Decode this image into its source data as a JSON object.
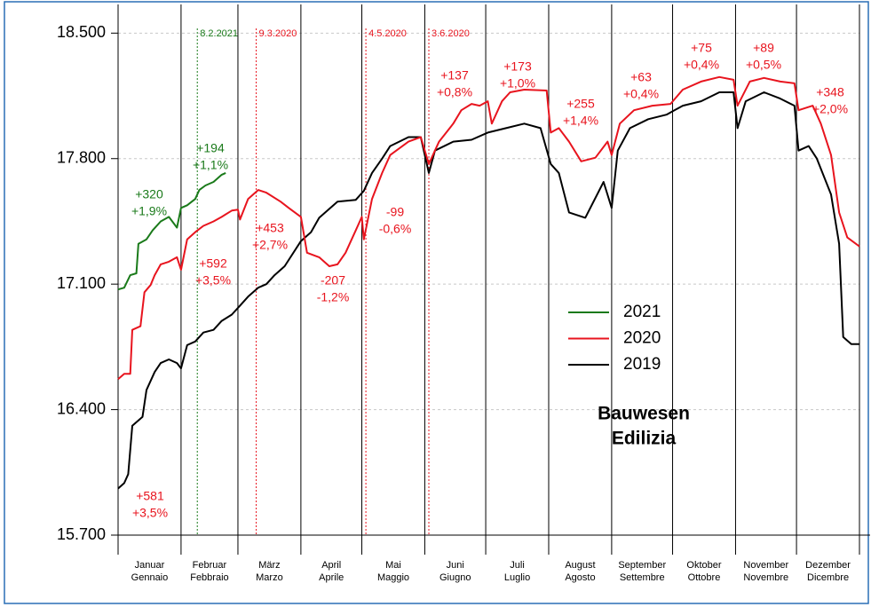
{
  "chart_data": {
    "type": "line",
    "xlim": [
      0,
      365
    ],
    "ylim": [
      15700,
      18660
    ],
    "yticks": [
      {
        "value": 15700,
        "label": "15.700"
      },
      {
        "value": 16400,
        "label": "16.400"
      },
      {
        "value": 17100,
        "label": "17.100"
      },
      {
        "value": 17800,
        "label": "17.800"
      },
      {
        "value": 18500,
        "label": "18.500"
      }
    ],
    "xticks": [
      0,
      31,
      59,
      90,
      120,
      151,
      181,
      212,
      243,
      273,
      304,
      334,
      365
    ],
    "months": [
      [
        "Januar",
        "Gennaio"
      ],
      [
        "Februar",
        "Febbraio"
      ],
      [
        "März",
        "Marzo"
      ],
      [
        "April",
        "Aprile"
      ],
      [
        "Mai",
        "Maggio"
      ],
      [
        "Juni",
        "Giugno"
      ],
      [
        "Juli",
        "Luglio"
      ],
      [
        "August",
        "Agosto"
      ],
      [
        "September",
        "Settembre"
      ],
      [
        "Oktober",
        "Ottobre"
      ],
      [
        "November",
        "Novembre"
      ],
      [
        "Dezember",
        "Dicembre"
      ]
    ],
    "grid": true,
    "series": [
      {
        "name": "2021",
        "color": "#1a7a1a",
        "x": [
          0,
          3,
          6,
          9,
          10,
          14,
          17,
          21,
          25,
          29,
          31,
          34,
          38,
          40,
          43,
          47,
          51,
          53
        ],
        "values": [
          17070,
          17080,
          17150,
          17160,
          17325,
          17350,
          17400,
          17450,
          17475,
          17415,
          17525,
          17540,
          17575,
          17625,
          17650,
          17670,
          17710,
          17720
        ]
      },
      {
        "name": "2020",
        "color": "#e8141e",
        "x": [
          0,
          3,
          6,
          7,
          11,
          13,
          16,
          18,
          21,
          25,
          29,
          31,
          34,
          38,
          42,
          47,
          51,
          56,
          59,
          60,
          64,
          69,
          73,
          80,
          84,
          90,
          93,
          99,
          104,
          108,
          112,
          117,
          120,
          121,
          125,
          130,
          134,
          143,
          149,
          153,
          158,
          165,
          169,
          174,
          178,
          182,
          184,
          189,
          193,
          200,
          211,
          213,
          217,
          222,
          228,
          235,
          241,
          243,
          247,
          254,
          263,
          272,
          278,
          287,
          296,
          303,
          305,
          311,
          318,
          326,
          333,
          335,
          342,
          346,
          351,
          355,
          359,
          365
        ],
        "values": [
          16570,
          16600,
          16600,
          16845,
          16865,
          17055,
          17095,
          17150,
          17210,
          17225,
          17250,
          17180,
          17350,
          17390,
          17425,
          17450,
          17475,
          17510,
          17515,
          17460,
          17575,
          17625,
          17610,
          17560,
          17525,
          17475,
          17275,
          17250,
          17200,
          17210,
          17275,
          17400,
          17475,
          17350,
          17575,
          17720,
          17820,
          17895,
          17920,
          17770,
          17895,
          17995,
          18070,
          18105,
          18095,
          18120,
          17995,
          18120,
          18170,
          18185,
          18180,
          17945,
          17970,
          17895,
          17785,
          17805,
          17895,
          17820,
          17995,
          18070,
          18095,
          18105,
          18185,
          18230,
          18255,
          18240,
          18095,
          18230,
          18250,
          18230,
          18220,
          18070,
          18095,
          17995,
          17820,
          17500,
          17360,
          17310
        ]
      },
      {
        "name": "2019",
        "color": "#000000",
        "x": [
          0,
          3,
          5,
          7,
          12,
          14,
          18,
          21,
          25,
          29,
          31,
          34,
          38,
          42,
          47,
          51,
          56,
          60,
          64,
          69,
          73,
          77,
          82,
          90,
          95,
          99,
          108,
          117,
          121,
          125,
          130,
          134,
          143,
          149,
          153,
          156,
          165,
          174,
          182,
          191,
          200,
          208,
          213,
          217,
          222,
          230,
          239,
          243,
          246,
          252,
          261,
          270,
          278,
          287,
          296,
          303,
          305,
          309,
          318,
          326,
          333,
          335,
          340,
          344,
          351,
          355,
          357,
          361,
          365
        ],
        "values": [
          15960,
          15990,
          16040,
          16310,
          16360,
          16510,
          16610,
          16660,
          16680,
          16660,
          16630,
          16760,
          16780,
          16830,
          16845,
          16895,
          16930,
          16980,
          17030,
          17080,
          17100,
          17150,
          17200,
          17340,
          17390,
          17470,
          17560,
          17570,
          17620,
          17720,
          17800,
          17870,
          17920,
          17920,
          17720,
          17845,
          17895,
          17905,
          17945,
          17970,
          17995,
          17970,
          17770,
          17720,
          17500,
          17470,
          17670,
          17525,
          17845,
          17970,
          18020,
          18045,
          18095,
          18120,
          18170,
          18170,
          17970,
          18120,
          18170,
          18135,
          18095,
          17845,
          17870,
          17800,
          17600,
          17325,
          16805,
          16765,
          16765
        ]
      }
    ],
    "events": [
      {
        "label": "8.2.2021",
        "x": 39,
        "color": "#1a7a1a"
      },
      {
        "label": "9.3.2020",
        "x": 68,
        "color": "#e8141e"
      },
      {
        "label": "4.5.2020",
        "x": 122,
        "color": "#e8141e"
      },
      {
        "label": "3.6.2020",
        "x": 153,
        "color": "#e8141e"
      }
    ],
    "annotations": [
      {
        "lines": [
          "+320",
          "+1,9%"
        ],
        "color": "#1a7a1a"
      },
      {
        "lines": [
          "+194",
          "+1,1%"
        ],
        "color": "#1a7a1a"
      },
      {
        "lines": [
          "+581",
          "+3,5%"
        ],
        "color": "#e8141e"
      },
      {
        "lines": [
          "+592",
          "+3,5%"
        ],
        "color": "#e8141e"
      },
      {
        "lines": [
          "+453",
          "+2,7%"
        ],
        "color": "#e8141e"
      },
      {
        "lines": [
          "-207",
          "-1,2%"
        ],
        "color": "#e8141e"
      },
      {
        "lines": [
          "-99",
          "-0,6%"
        ],
        "color": "#e8141e"
      },
      {
        "lines": [
          "+137",
          "+0,8%"
        ],
        "color": "#e8141e"
      },
      {
        "lines": [
          "+173",
          "+1,0%"
        ],
        "color": "#e8141e"
      },
      {
        "lines": [
          "+255",
          "+1,4%"
        ],
        "color": "#e8141e"
      },
      {
        "lines": [
          "+63",
          "+0,4%"
        ],
        "color": "#e8141e"
      },
      {
        "lines": [
          "+75",
          "+0,4%"
        ],
        "color": "#e8141e"
      },
      {
        "lines": [
          "+89",
          "+0,5%"
        ],
        "color": "#e8141e"
      },
      {
        "lines": [
          "+348",
          "+2,0%"
        ],
        "color": "#e8141e"
      }
    ],
    "text": [
      "Bauwesen",
      "Edilizia"
    ]
  }
}
